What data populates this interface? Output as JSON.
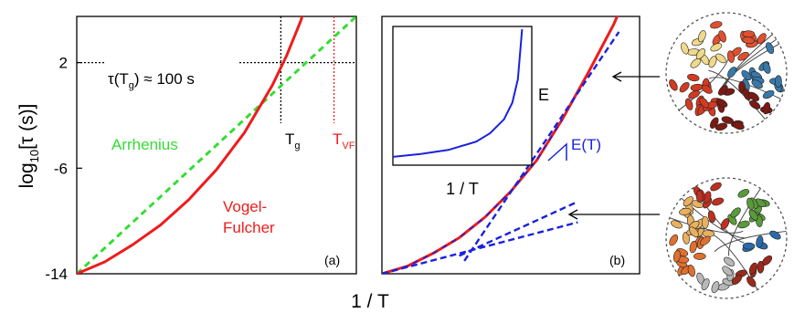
{
  "colors": {
    "red": "#ee1c1c",
    "green": "#33dd33",
    "blue": "#1a22dd",
    "axis": "#000000",
    "dotted": "#000000"
  },
  "xlabel": "1 / T",
  "chart_data": [
    {
      "panel_label": "(a)",
      "type": "line",
      "ylabel_main": "log",
      "ylabel_sub": "10",
      "ylabel_rest": "[τ (s)]",
      "ylim": [
        -14,
        5.5
      ],
      "xlim": [
        0,
        1
      ],
      "yticks": [
        -14,
        -6,
        2
      ],
      "ytick_labels": [
        "-14",
        "-6",
        "2"
      ],
      "series": [
        {
          "name": "Arrhenius",
          "style": "dashed",
          "color_key": "green",
          "x": [
            0,
            1.0
          ],
          "y": [
            -14,
            5.5
          ]
        },
        {
          "name": "Vogel-Fulcher",
          "name_line1": "Vogel-",
          "name_line2": "Fulcher",
          "style": "solid",
          "color_key": "red",
          "x": [
            0,
            0.1,
            0.2,
            0.3,
            0.4,
            0.5,
            0.6,
            0.7,
            0.75,
            0.8,
            0.85
          ],
          "y": [
            -14,
            -13.1,
            -11.8,
            -10.3,
            -8.4,
            -6.1,
            -3.3,
            0.3,
            2.5,
            5.1,
            8.2
          ]
        }
      ],
      "annotations": {
        "tau_label": "τ(T",
        "tau_sub": "g",
        "tau_rest": ") ≈ 100 s",
        "tau_y": 2,
        "tg_label": "T",
        "tg_sub": "g",
        "tg_x": 0.73,
        "tvf_label": "T",
        "tvf_sub": "VF",
        "tvf_x": 0.92
      }
    },
    {
      "panel_label": "(b)",
      "type": "line",
      "series": [
        {
          "name": "",
          "style": "solid",
          "color_key": "red",
          "x": [
            0,
            0.1,
            0.2,
            0.3,
            0.4,
            0.5,
            0.6,
            0.7,
            0.8,
            0.9,
            1.0
          ],
          "y": [
            0,
            0.03,
            0.08,
            0.14,
            0.22,
            0.32,
            0.44,
            0.6,
            0.78,
            0.97,
            1.2
          ]
        }
      ],
      "tangents": [
        {
          "x": [
            0.3,
            0.76
          ],
          "y": [
            0.07,
            0.28
          ]
        },
        {
          "x": [
            0.0,
            0.76
          ],
          "y": [
            0.0,
            0.2
          ]
        },
        {
          "x": [
            0.32,
            0.92
          ],
          "y": [
            0.05,
            0.94
          ]
        }
      ],
      "slope_label": "E(T)",
      "inset": {
        "xlabel": "1 / T",
        "ylabel": "E",
        "x": [
          0,
          0.2,
          0.4,
          0.6,
          0.7,
          0.8,
          0.86,
          0.9,
          0.93
        ],
        "y": [
          0.06,
          0.08,
          0.11,
          0.17,
          0.23,
          0.33,
          0.45,
          0.62,
          0.98
        ]
      }
    }
  ]
}
